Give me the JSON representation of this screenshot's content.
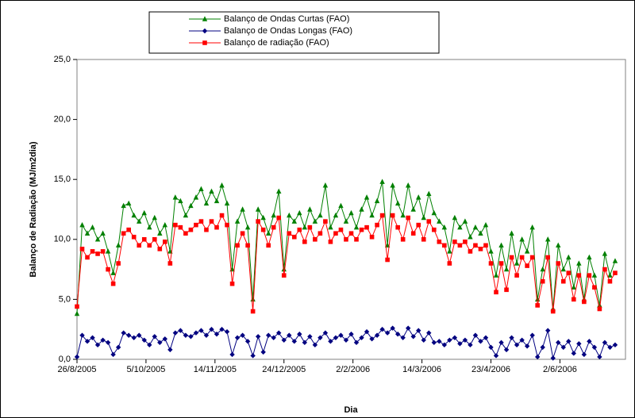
{
  "chart_data": {
    "type": "line",
    "x_label": "Dia",
    "y_label": "Balanço de Radiação (MJ/m2dia)",
    "x": [
      "2005-08-26",
      "2005-08-29",
      "2005-09-01",
      "2005-09-04",
      "2005-09-07",
      "2005-09-10",
      "2005-09-13",
      "2005-09-16",
      "2005-09-19",
      "2005-09-22",
      "2005-09-25",
      "2005-09-28",
      "2005-10-01",
      "2005-10-04",
      "2005-10-07",
      "2005-10-10",
      "2005-10-13",
      "2005-10-16",
      "2005-10-19",
      "2005-10-22",
      "2005-10-25",
      "2005-10-28",
      "2005-10-31",
      "2005-11-03",
      "2005-11-06",
      "2005-11-09",
      "2005-11-12",
      "2005-11-15",
      "2005-11-18",
      "2005-11-21",
      "2005-11-24",
      "2005-11-27",
      "2005-11-30",
      "2005-12-03",
      "2005-12-06",
      "2005-12-09",
      "2005-12-12",
      "2005-12-15",
      "2005-12-18",
      "2005-12-21",
      "2005-12-24",
      "2005-12-27",
      "2005-12-30",
      "2006-01-02",
      "2006-01-05",
      "2006-01-08",
      "2006-01-11",
      "2006-01-14",
      "2006-01-17",
      "2006-01-20",
      "2006-01-23",
      "2006-01-26",
      "2006-01-29",
      "2006-02-01",
      "2006-02-04",
      "2006-02-07",
      "2006-02-10",
      "2006-02-13",
      "2006-02-16",
      "2006-02-19",
      "2006-02-22",
      "2006-02-25",
      "2006-02-28",
      "2006-03-03",
      "2006-03-06",
      "2006-03-09",
      "2006-03-12",
      "2006-03-15",
      "2006-03-18",
      "2006-03-21",
      "2006-03-24",
      "2006-03-27",
      "2006-03-30",
      "2006-04-02",
      "2006-04-05",
      "2006-04-08",
      "2006-04-11",
      "2006-04-14",
      "2006-04-17",
      "2006-04-20",
      "2006-04-23",
      "2006-04-26",
      "2006-04-29",
      "2006-05-02",
      "2006-05-05",
      "2006-05-08",
      "2006-05-11",
      "2006-05-14",
      "2006-05-17",
      "2006-05-20",
      "2006-05-23",
      "2006-05-26",
      "2006-05-29",
      "2006-06-01",
      "2006-06-04",
      "2006-06-07",
      "2006-06-10",
      "2006-06-13",
      "2006-06-16",
      "2006-06-19",
      "2006-06-22",
      "2006-06-25",
      "2006-06-28",
      "2006-07-01",
      "2006-07-04"
    ],
    "series": [
      {
        "name": "Balanço de Ondas Curtas (FAO)",
        "color": "#008000",
        "marker": "triangle",
        "values": [
          3.8,
          11.2,
          10.5,
          11.0,
          10.0,
          10.5,
          9.0,
          7.2,
          9.5,
          12.8,
          13.0,
          12.0,
          11.5,
          12.2,
          11.0,
          11.8,
          10.5,
          11.2,
          9.0,
          13.5,
          13.2,
          12.0,
          12.8,
          13.5,
          14.2,
          13.0,
          14.0,
          13.2,
          14.5,
          13.0,
          7.5,
          11.5,
          12.5,
          11.0,
          5.0,
          12.5,
          11.8,
          10.5,
          12.0,
          14.0,
          7.5,
          12.0,
          11.5,
          12.2,
          11.0,
          12.5,
          11.5,
          12.0,
          14.5,
          11.0,
          12.0,
          12.8,
          11.5,
          12.2,
          11.0,
          12.5,
          13.5,
          12.0,
          13.2,
          14.8,
          9.5,
          14.5,
          13.0,
          12.0,
          14.5,
          12.5,
          13.5,
          11.8,
          13.8,
          12.2,
          11.5,
          11.0,
          9.0,
          11.8,
          11.0,
          11.5,
          10.2,
          11.0,
          10.5,
          11.2,
          9.0,
          7.0,
          9.5,
          7.5,
          10.5,
          8.0,
          10.0,
          9.0,
          11.0,
          5.0,
          7.5,
          10.0,
          4.2,
          9.5,
          7.5,
          8.5,
          6.0,
          8.0,
          5.0,
          8.5,
          7.0,
          4.5,
          8.8,
          7.0,
          8.2
        ]
      },
      {
        "name": "Balanço de Ondas Longas (FAO)",
        "color": "#000080",
        "marker": "diamond",
        "values": [
          0.2,
          2.0,
          1.5,
          1.8,
          1.2,
          1.6,
          1.4,
          0.4,
          1.0,
          2.2,
          2.0,
          1.8,
          2.0,
          1.6,
          1.2,
          1.9,
          1.4,
          1.7,
          0.8,
          2.2,
          2.4,
          2.0,
          1.9,
          2.2,
          2.4,
          2.0,
          2.5,
          2.1,
          2.5,
          2.3,
          0.4,
          1.8,
          2.0,
          1.5,
          0.3,
          1.9,
          0.6,
          2.0,
          1.8,
          2.2,
          1.6,
          2.0,
          1.5,
          2.1,
          1.4,
          1.9,
          1.2,
          1.8,
          2.2,
          1.5,
          1.8,
          2.0,
          1.6,
          2.1,
          1.4,
          1.8,
          2.3,
          1.7,
          2.0,
          2.5,
          2.2,
          2.6,
          2.1,
          1.8,
          2.6,
          1.9,
          2.4,
          1.6,
          2.2,
          1.4,
          1.5,
          1.2,
          1.6,
          1.8,
          1.3,
          1.6,
          1.2,
          2.0,
          1.5,
          1.8,
          1.0,
          0.3,
          1.4,
          0.8,
          1.8,
          1.2,
          1.6,
          1.1,
          2.0,
          0.2,
          1.0,
          2.4,
          0.1,
          1.4,
          1.0,
          1.5,
          0.5,
          1.3,
          0.4,
          1.5,
          1.0,
          0.2,
          1.4,
          1.0,
          1.2
        ]
      },
      {
        "name": "Balanço de radiação (FAO)",
        "color": "#ff0000",
        "marker": "square",
        "values": [
          4.4,
          9.2,
          8.5,
          9.0,
          8.8,
          9.0,
          7.5,
          6.3,
          8.0,
          10.5,
          10.8,
          10.2,
          9.5,
          10.0,
          9.5,
          10.0,
          9.2,
          9.8,
          8.0,
          11.2,
          11.0,
          10.5,
          10.8,
          11.2,
          11.5,
          10.8,
          11.5,
          11.0,
          12.0,
          11.2,
          6.3,
          9.5,
          10.5,
          9.5,
          4.0,
          11.5,
          10.8,
          9.5,
          11.0,
          11.8,
          7.0,
          10.5,
          10.2,
          10.8,
          9.8,
          11.0,
          10.0,
          10.5,
          11.5,
          9.8,
          10.5,
          10.8,
          10.0,
          10.5,
          10.0,
          10.8,
          11.0,
          10.2,
          11.2,
          12.0,
          8.3,
          12.0,
          11.0,
          10.0,
          11.8,
          10.5,
          11.2,
          10.0,
          11.5,
          10.8,
          9.8,
          9.5,
          8.0,
          9.8,
          9.5,
          9.8,
          9.0,
          9.5,
          9.2,
          9.5,
          8.0,
          5.6,
          8.0,
          5.8,
          8.5,
          7.0,
          8.5,
          7.8,
          8.5,
          4.5,
          6.5,
          8.5,
          4.0,
          8.0,
          6.5,
          7.2,
          5.0,
          7.0,
          4.8,
          7.0,
          6.0,
          4.2,
          7.5,
          6.5,
          7.2
        ]
      }
    ],
    "xlim": [
      "2005-08-26",
      "2006-07-10"
    ],
    "xticks": [
      {
        "value": "2005-08-26",
        "label": "26/8/2005"
      },
      {
        "value": "2005-10-05",
        "label": "5/10/2005"
      },
      {
        "value": "2005-11-14",
        "label": "14/11/2005"
      },
      {
        "value": "2005-12-24",
        "label": "24/12/2005"
      },
      {
        "value": "2006-02-02",
        "label": "2/2/2006"
      },
      {
        "value": "2006-03-14",
        "label": "14/3/2006"
      },
      {
        "value": "2006-04-23",
        "label": "23/4/2006"
      },
      {
        "value": "2006-06-02",
        "label": "2/6/2006"
      }
    ],
    "ylim": [
      0,
      25
    ],
    "yticks": [
      {
        "value": 0,
        "label": "0,0"
      },
      {
        "value": 5,
        "label": "5,0"
      },
      {
        "value": 10,
        "label": "10,0"
      },
      {
        "value": 15,
        "label": "15,0"
      },
      {
        "value": 20,
        "label": "20,0"
      },
      {
        "value": 25,
        "label": "25,0"
      }
    ],
    "legend": "top"
  }
}
